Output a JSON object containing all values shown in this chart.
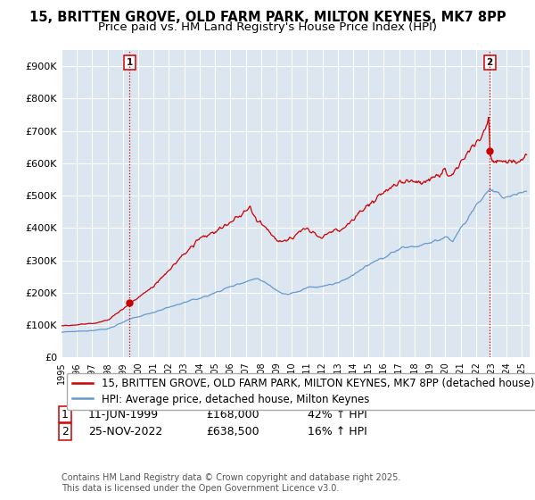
{
  "title": "15, BRITTEN GROVE, OLD FARM PARK, MILTON KEYNES, MK7 8PP",
  "subtitle": "Price paid vs. HM Land Registry's House Price Index (HPI)",
  "ylim": [
    0,
    950000
  ],
  "yticks": [
    0,
    100000,
    200000,
    300000,
    400000,
    500000,
    600000,
    700000,
    800000,
    900000
  ],
  "ytick_labels": [
    "£0",
    "£100K",
    "£200K",
    "£300K",
    "£400K",
    "£500K",
    "£600K",
    "£700K",
    "£800K",
    "£900K"
  ],
  "xlim_start": 1995.0,
  "xlim_end": 2025.5,
  "background_color": "#ffffff",
  "plot_bg_color": "#dce6f0",
  "grid_color": "#ffffff",
  "sale1_x": 1999.44,
  "sale1_y": 168000,
  "sale2_x": 2022.9,
  "sale2_y": 638500,
  "vline_color": "#cc0000",
  "red_line_color": "#cc0000",
  "blue_line_color": "#6699cc",
  "legend_label_red": "15, BRITTEN GROVE, OLD FARM PARK, MILTON KEYNES, MK7 8PP (detached house)",
  "legend_label_blue": "HPI: Average price, detached house, Milton Keynes",
  "copyright_text": "Contains HM Land Registry data © Crown copyright and database right 2025.\nThis data is licensed under the Open Government Licence v3.0.",
  "title_fontsize": 10.5,
  "subtitle_fontsize": 9.5,
  "tick_fontsize": 8,
  "legend_fontsize": 8.5,
  "footnote_fontsize": 9,
  "copyright_fontsize": 7
}
